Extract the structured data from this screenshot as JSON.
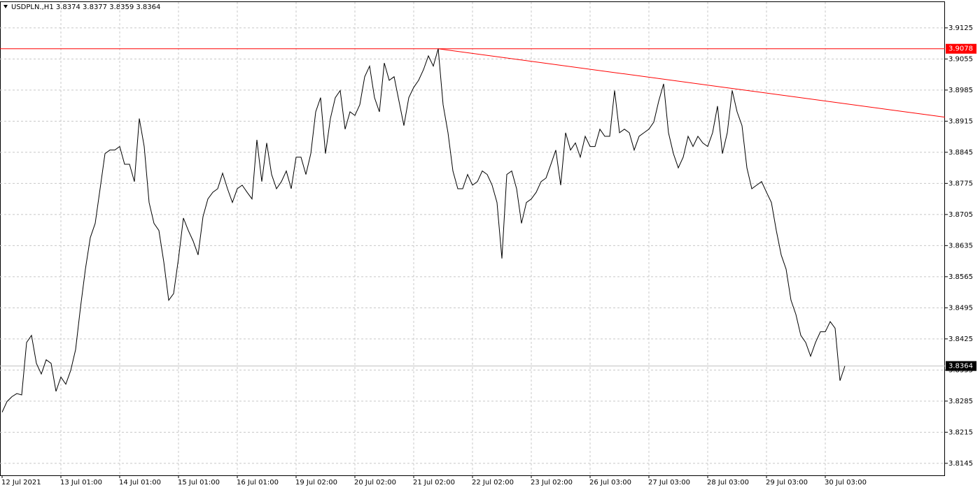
{
  "chart_data": {
    "type": "line",
    "title": "USDPLN.,H1  3.8374 3.8377 3.8359 3.8364",
    "categories": [
      "12 Jul 2021",
      null,
      null,
      null,
      null,
      null,
      null,
      null,
      null,
      null,
      null,
      null,
      "13 Jul 01:00",
      null,
      null,
      null,
      null,
      null,
      null,
      null,
      null,
      null,
      null,
      null,
      "14 Jul 01:00",
      null,
      null,
      null,
      null,
      null,
      null,
      null,
      null,
      null,
      null,
      null,
      "15 Jul 01:00",
      null,
      null,
      null,
      null,
      null,
      null,
      null,
      null,
      null,
      null,
      null,
      "16 Jul 01:00",
      null,
      null,
      null,
      null,
      null,
      null,
      null,
      null,
      null,
      null,
      null,
      "19 Jul 02:00",
      null,
      null,
      null,
      null,
      null,
      null,
      null,
      null,
      null,
      null,
      null,
      "20 Jul 02:00",
      null,
      null,
      null,
      null,
      null,
      null,
      null,
      null,
      null,
      null,
      null,
      "21 Jul 02:00",
      null,
      null,
      null,
      null,
      null,
      null,
      null,
      null,
      null,
      null,
      null,
      "22 Jul 02:00",
      null,
      null,
      null,
      null,
      null,
      null,
      null,
      null,
      null,
      null,
      null,
      "23 Jul 02:00",
      null,
      null,
      null,
      null,
      null,
      null,
      null,
      null,
      null,
      null,
      null,
      "26 Jul 03:00",
      null,
      null,
      null,
      null,
      null,
      null,
      null,
      null,
      null,
      null,
      null,
      "27 Jul 03:00",
      null,
      null,
      null,
      null,
      null,
      null,
      null,
      null,
      null,
      null,
      null,
      "28 Jul 03:00",
      null,
      null,
      null,
      null,
      null,
      null,
      null,
      null,
      null,
      null,
      null,
      "29 Jul 03:00",
      null,
      null,
      null,
      null,
      null,
      null,
      null,
      null,
      null,
      null,
      null,
      "30 Jul 03:00",
      null,
      null,
      null,
      null
    ],
    "series": [
      {
        "color": "#000000",
        "values": [
          3.826,
          3.8284,
          3.8295,
          3.8302,
          3.8299,
          3.8417,
          3.8433,
          3.837,
          3.8346,
          3.8378,
          3.837,
          3.8307,
          3.8339,
          3.8323,
          3.8354,
          3.8401,
          3.8496,
          3.8582,
          3.8653,
          3.8685,
          3.8763,
          3.8842,
          3.885,
          3.885,
          3.8858,
          3.8818,
          3.8818,
          3.8779,
          3.8921,
          3.8858,
          3.8732,
          3.8685,
          3.8669,
          3.8598,
          3.8512,
          3.8527,
          3.8606,
          3.8697,
          3.8669,
          3.8645,
          3.8614,
          3.87,
          3.874,
          3.8755,
          3.8763,
          3.8798,
          3.8763,
          3.8732,
          3.8763,
          3.8771,
          3.8755,
          3.874,
          3.8873,
          3.8779,
          3.8866,
          3.8795,
          3.8763,
          3.8779,
          3.8803,
          3.8763,
          3.8834,
          3.8834,
          3.8795,
          3.8842,
          3.8936,
          3.8968,
          3.8842,
          3.8921,
          3.8968,
          3.8984,
          3.8897,
          3.8936,
          3.8928,
          3.8952,
          3.9015,
          3.9039,
          3.8968,
          3.8936,
          3.9046,
          3.9007,
          3.9015,
          3.896,
          3.8905,
          3.8968,
          3.8991,
          3.9007,
          3.9031,
          3.9062,
          3.9039,
          3.9078,
          3.8952,
          3.8889,
          3.8803,
          3.8763,
          3.8763,
          3.8795,
          3.8771,
          3.8779,
          3.8803,
          3.8795,
          3.8771,
          3.8732,
          3.8606,
          3.8795,
          3.8803,
          3.8763,
          3.8685,
          3.8732,
          3.874,
          3.8755,
          3.8779,
          3.8787,
          3.8818,
          3.885,
          3.8771,
          3.8889,
          3.885,
          3.8866,
          3.8834,
          3.8881,
          3.8858,
          3.8858,
          3.8897,
          3.8881,
          3.8881,
          3.8984,
          3.8889,
          3.8897,
          3.8889,
          3.885,
          3.8881,
          3.8889,
          3.8897,
          3.8913,
          3.896,
          3.8999,
          3.8889,
          3.8842,
          3.881,
          3.8834,
          3.8881,
          3.8858,
          3.8881,
          3.8866,
          3.8858,
          3.8889,
          3.8949,
          3.8842,
          3.8889,
          3.8984,
          3.8936,
          3.8905,
          3.881,
          3.8763,
          3.8771,
          3.8779,
          3.8755,
          3.8732,
          3.8669,
          3.8614,
          3.8582,
          3.8512,
          3.848,
          3.8433,
          3.8417,
          3.8386,
          3.8417,
          3.8441,
          3.8441,
          3.8464,
          3.8449,
          3.8331,
          3.8364
        ]
      }
    ],
    "ylim": [
      3.8118,
      3.9183
    ],
    "yticks": [
      3.9125,
      3.9055,
      3.8985,
      3.8915,
      3.8845,
      3.8775,
      3.8705,
      3.8635,
      3.8565,
      3.8495,
      3.8425,
      3.8355,
      3.8285,
      3.8215,
      3.8145
    ],
    "grid": true,
    "hline": {
      "value": 3.9078,
      "label": "3.9078",
      "color": "#ff0000"
    },
    "price_line": {
      "value": 3.8364,
      "label": "3.8364",
      "color": "#000000"
    },
    "trendline": {
      "values": [
        3.9078,
        3.8924
      ],
      "color": "#ff0000"
    }
  }
}
